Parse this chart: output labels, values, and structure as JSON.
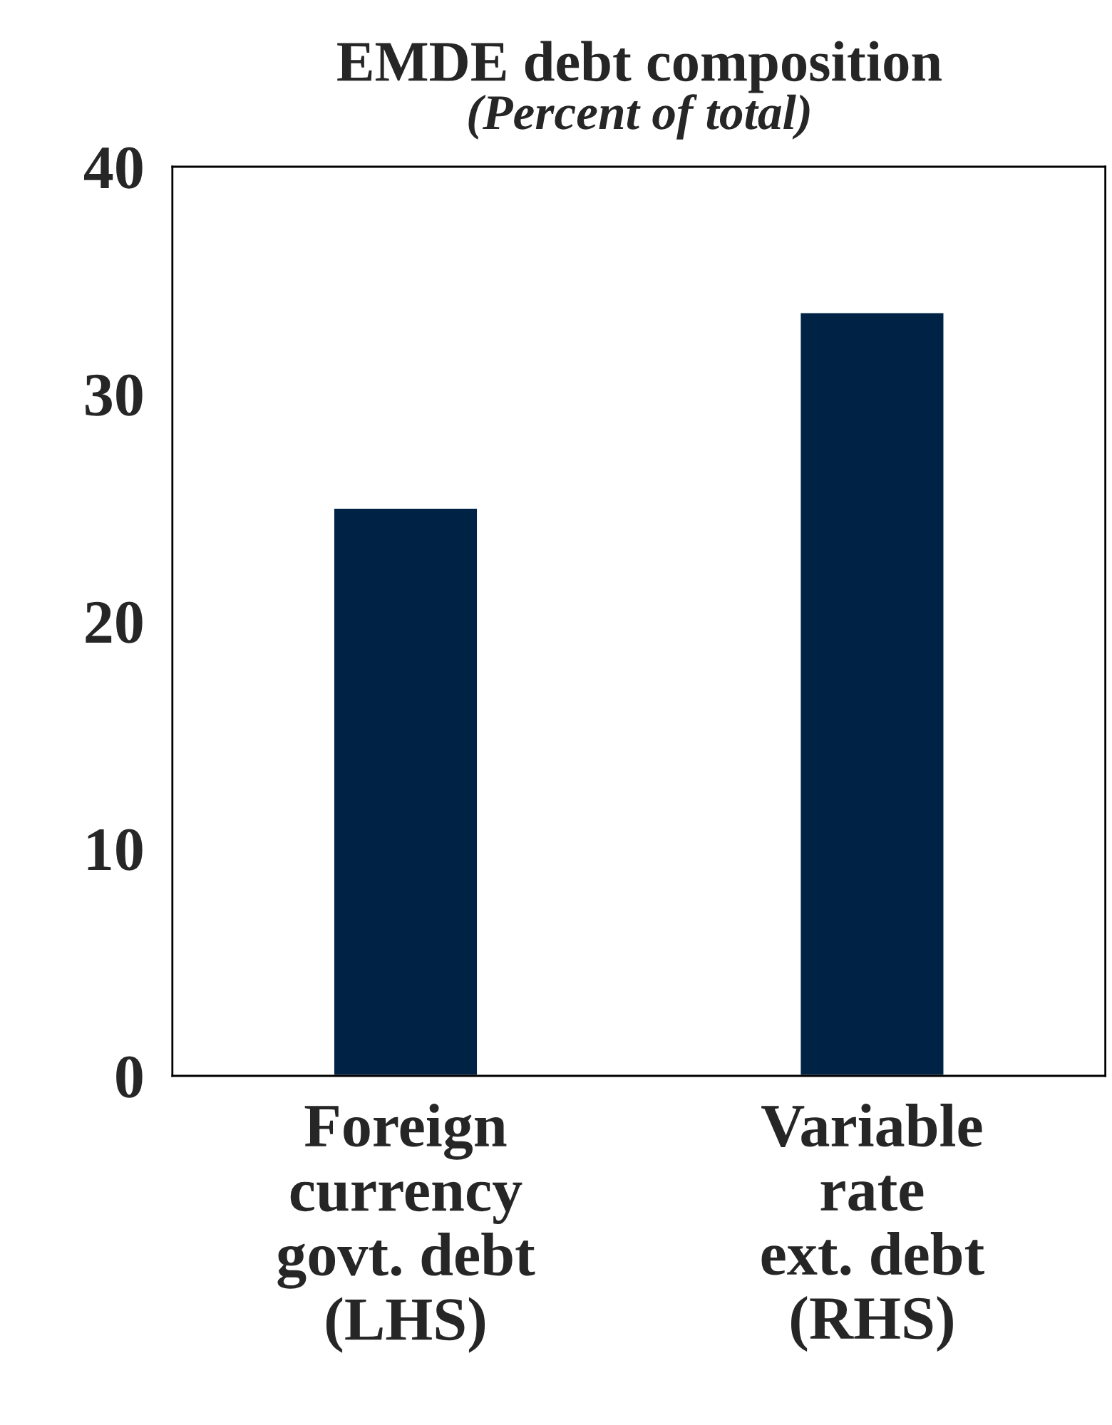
{
  "chart_data": {
    "type": "bar",
    "title": "EMDE debt composition",
    "subtitle": "(Percent of total)",
    "categories": [
      "Foreign\ncurrency\ngovt. debt\n(LHS)",
      "Variable\nrate\next. debt\n(RHS)"
    ],
    "values": [
      25,
      33.6
    ],
    "color": "#002345",
    "ylim": [
      0,
      40
    ],
    "yticks": [
      0,
      10,
      20,
      30,
      40
    ],
    "grid": false
  }
}
